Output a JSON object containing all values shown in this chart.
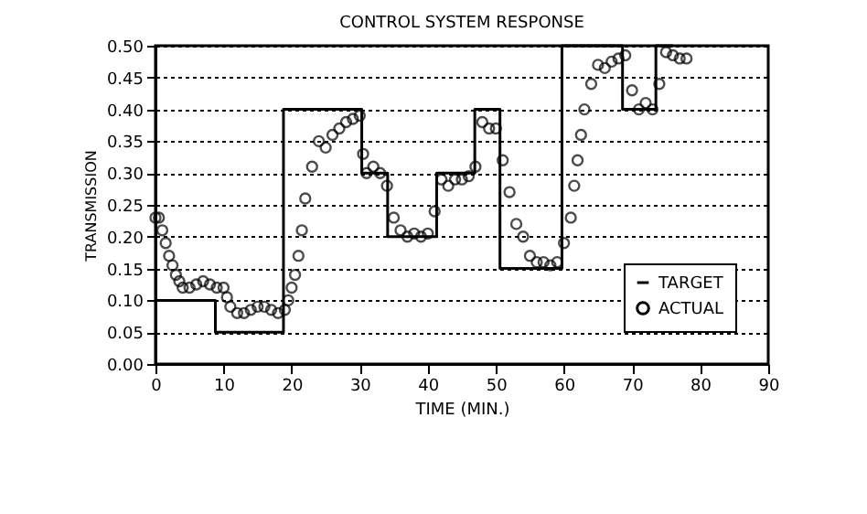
{
  "chart_data": {
    "type": "step",
    "title": "CONTROL SYSTEM RESPONSE",
    "xlabel": "TIME (MIN.)",
    "ylabel": "TRANSMISSION",
    "xlim": [
      0,
      90
    ],
    "xticks": [
      0,
      10,
      20,
      30,
      40,
      50,
      60,
      70,
      80,
      90
    ],
    "ylim": [
      0,
      0.5
    ],
    "yticks": [
      {
        "value": 0,
        "label": "0.00"
      },
      {
        "value": 0.05,
        "label": "0.05"
      },
      {
        "value": 0.1,
        "label": "0.10"
      },
      {
        "value": 0.15,
        "label": "0.15"
      },
      {
        "value": 0.2,
        "label": "0.20"
      },
      {
        "value": 0.25,
        "label": "0.25"
      },
      {
        "value": 0.3,
        "label": "0.30"
      },
      {
        "value": 0.35,
        "label": "0.35"
      },
      {
        "value": 0.4,
        "label": "0.40"
      },
      {
        "value": 0.45,
        "label": "0.45"
      },
      {
        "value": 0.5,
        "label": "0.50"
      }
    ],
    "grid": "y",
    "legend": "bottom right",
    "series": [
      {
        "name": "TARGET",
        "color": "#000000",
        "line_style": "solid",
        "x": [
          0,
          8.8,
          18.8,
          30.3,
          34.1,
          41.3,
          46.9,
          50.6,
          59.7,
          68.6,
          73.5,
          76
        ],
        "values": [
          0.1,
          0.05,
          0.4,
          0.3,
          0.2,
          0.3,
          0.4,
          0.15,
          0.5,
          0.4,
          0.5,
          0.5
        ]
      },
      {
        "name": "ACTUAL",
        "type": "scatter",
        "marker": "circle",
        "color": "#000000",
        "x": [
          0,
          0.5,
          1,
          1.5,
          2,
          2.5,
          3,
          3.5,
          4,
          5,
          6,
          7,
          8,
          9,
          10,
          10.5,
          11,
          12,
          13,
          14,
          15,
          16,
          17,
          18,
          19,
          19.5,
          20,
          20.5,
          21,
          21.5,
          22,
          23,
          24,
          25,
          26,
          27,
          28,
          29,
          30,
          30.5,
          31,
          32,
          33,
          34,
          35,
          36,
          37,
          38,
          39,
          40,
          41,
          42,
          43,
          44,
          45,
          46,
          47,
          48,
          49,
          50,
          51,
          52,
          53,
          54,
          55,
          56,
          57,
          58,
          59,
          60,
          61,
          61.5,
          62,
          62.5,
          63,
          64,
          65,
          66,
          67,
          68,
          69,
          70,
          71,
          72,
          73,
          74,
          75,
          76,
          77,
          78
        ],
        "values": [
          0.23,
          0.23,
          0.21,
          0.19,
          0.17,
          0.155,
          0.14,
          0.13,
          0.12,
          0.12,
          0.125,
          0.13,
          0.125,
          0.12,
          0.12,
          0.105,
          0.09,
          0.08,
          0.08,
          0.085,
          0.09,
          0.09,
          0.085,
          0.08,
          0.085,
          0.1,
          0.12,
          0.14,
          0.17,
          0.21,
          0.26,
          0.31,
          0.35,
          0.34,
          0.36,
          0.37,
          0.38,
          0.385,
          0.39,
          0.33,
          0.3,
          0.31,
          0.3,
          0.28,
          0.23,
          0.21,
          0.2,
          0.205,
          0.2,
          0.205,
          0.24,
          0.29,
          0.28,
          0.29,
          0.29,
          0.295,
          0.31,
          0.38,
          0.37,
          0.37,
          0.32,
          0.27,
          0.22,
          0.2,
          0.17,
          0.16,
          0.16,
          0.155,
          0.16,
          0.19,
          0.23,
          0.28,
          0.32,
          0.36,
          0.4,
          0.44,
          0.47,
          0.465,
          0.475,
          0.48,
          0.485,
          0.43,
          0.4,
          0.41,
          0.4,
          0.44,
          0.49,
          0.485,
          0.48,
          0.48
        ]
      }
    ]
  }
}
